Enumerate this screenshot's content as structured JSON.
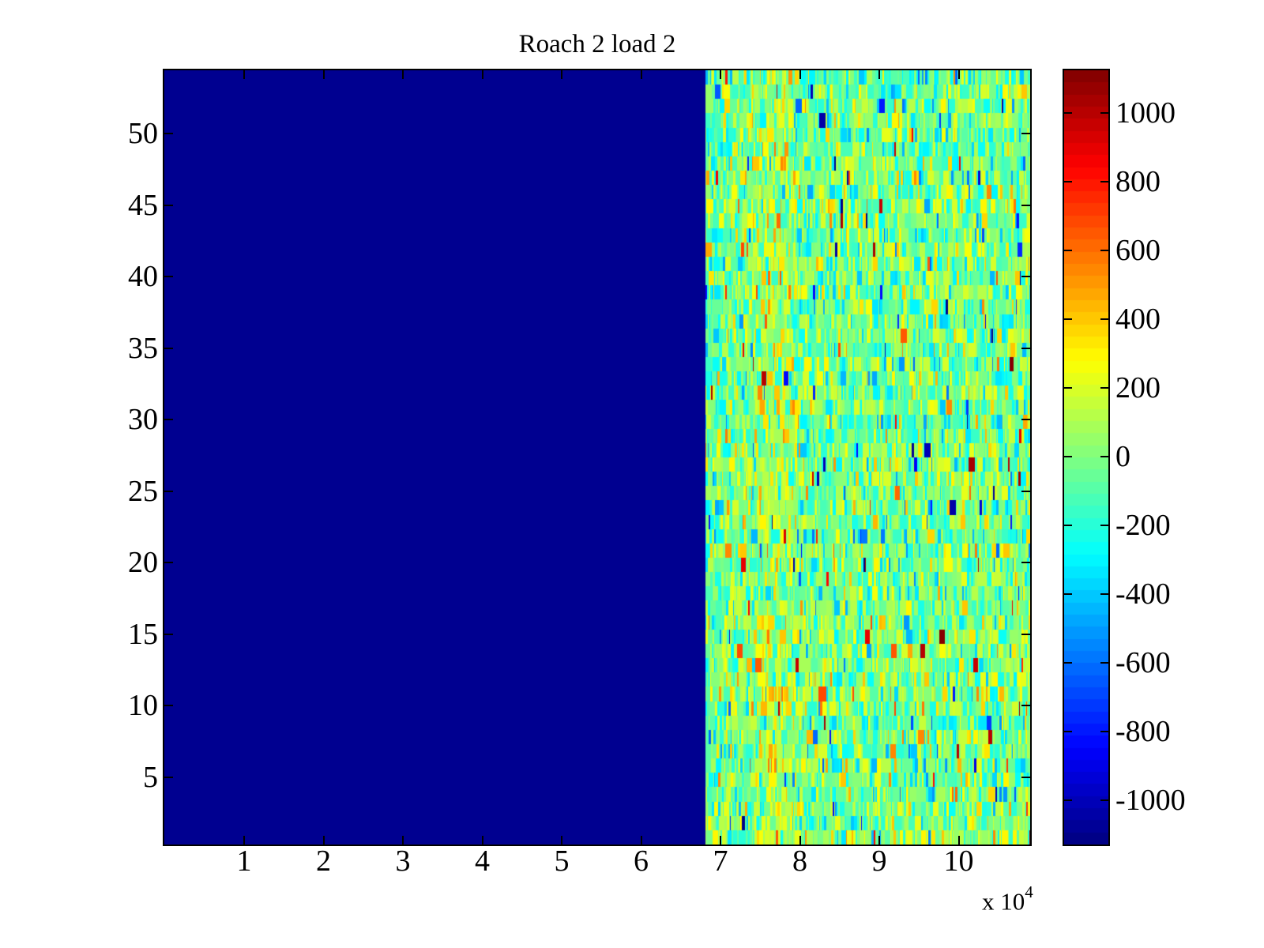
{
  "title": "Roach 2 load 2",
  "x_axis": {
    "tick_labels": [
      "1",
      "2",
      "3",
      "4",
      "5",
      "6",
      "7",
      "8",
      "9",
      "10"
    ],
    "multiplier_base": "x 10",
    "multiplier_exp": "4"
  },
  "y_axis": {
    "tick_labels": [
      "50",
      "45",
      "40",
      "35",
      "30",
      "25",
      "20",
      "15",
      "10",
      "5"
    ]
  },
  "colorbar": {
    "tick_labels": [
      "1000",
      "800",
      "600",
      "400",
      "200",
      "0",
      "-200",
      "-400",
      "-600",
      "-800",
      "-1000"
    ],
    "colormap": "jet",
    "levels": 64,
    "value_max": 1125,
    "value_min": -1130
  },
  "heatmap": {
    "rows": 54,
    "flat_color": "#000090",
    "flat_value": -1130,
    "transition_x_value": 68100,
    "noise_mean": -30,
    "noise_std": 200,
    "outlier_rate": 0.022,
    "hot_column_x_value": 76600,
    "seed": 42
  },
  "chart_data": {
    "type": "heatmap",
    "title": "Roach 2 load 2",
    "x_range": [
      0,
      109000
    ],
    "x_tick_values": [
      10000,
      20000,
      30000,
      40000,
      50000,
      60000,
      70000,
      80000,
      90000,
      100000
    ],
    "x_tick_display_scale": "x 10^4",
    "y_rows": 54,
    "y_tick_values": [
      5,
      10,
      15,
      20,
      25,
      30,
      35,
      40,
      45,
      50
    ],
    "color_range": [
      -1130,
      1125
    ],
    "colorbar_tick_values": [
      1000,
      800,
      600,
      400,
      200,
      0,
      -200,
      -400,
      -600,
      -800,
      -1000
    ],
    "colormap": "jet",
    "colormap_levels": 64,
    "legend_position": "right-colorbar",
    "grid": false,
    "regions": [
      {
        "name": "flat-minimum-region",
        "x_range": [
          0,
          68100
        ],
        "rows": "all 54",
        "value": -1130,
        "appearance": "uniform dark navy (colormap minimum)"
      },
      {
        "name": "noise-region",
        "x_range": [
          68100,
          109000
        ],
        "rows": "all 54",
        "mean": -30,
        "std": 200,
        "outlier_rate": 0.022,
        "appearance": "vertical random stripes: green/cyan/yellow with sparse orange, red and deep-blue outliers; brighter yellow column near x=76600"
      }
    ]
  }
}
